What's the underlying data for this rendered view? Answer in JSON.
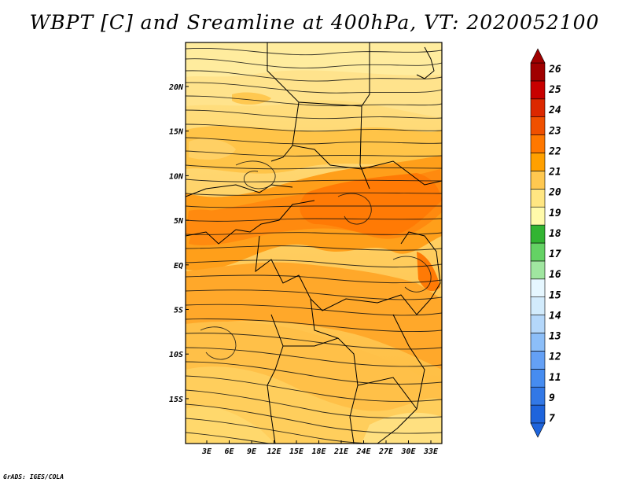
{
  "title": "WBPT [C] and Sreamline at 400hPa, VT: 2020052100",
  "credit": "GrADS: IGES/COLA",
  "map": {
    "lon_labels": [
      "3E",
      "6E",
      "9E",
      "12E",
      "15E",
      "18E",
      "21E",
      "24E",
      "27E",
      "30E",
      "33E"
    ],
    "lat_labels": [
      "20N",
      "15N",
      "10N",
      "5N",
      "EQ",
      "5S",
      "10S",
      "15S"
    ]
  },
  "colorbar": {
    "labels": [
      "7",
      "9",
      "11",
      "12",
      "13",
      "14",
      "15",
      "16",
      "17",
      "18",
      "19",
      "20",
      "21",
      "22",
      "23",
      "24",
      "25",
      "26"
    ],
    "colors": [
      "#1e64dc",
      "#3278e6",
      "#468cf0",
      "#64a0f5",
      "#8cbef8",
      "#b4d7fa",
      "#d2ebfc",
      "#e6f7ff",
      "#a0e6a0",
      "#64d264",
      "#32b432",
      "#fffaaa",
      "#ffe682",
      "#ffc850",
      "#ffa000",
      "#ff7800",
      "#f05000",
      "#dc2800",
      "#c80000",
      "#a00000"
    ]
  }
}
